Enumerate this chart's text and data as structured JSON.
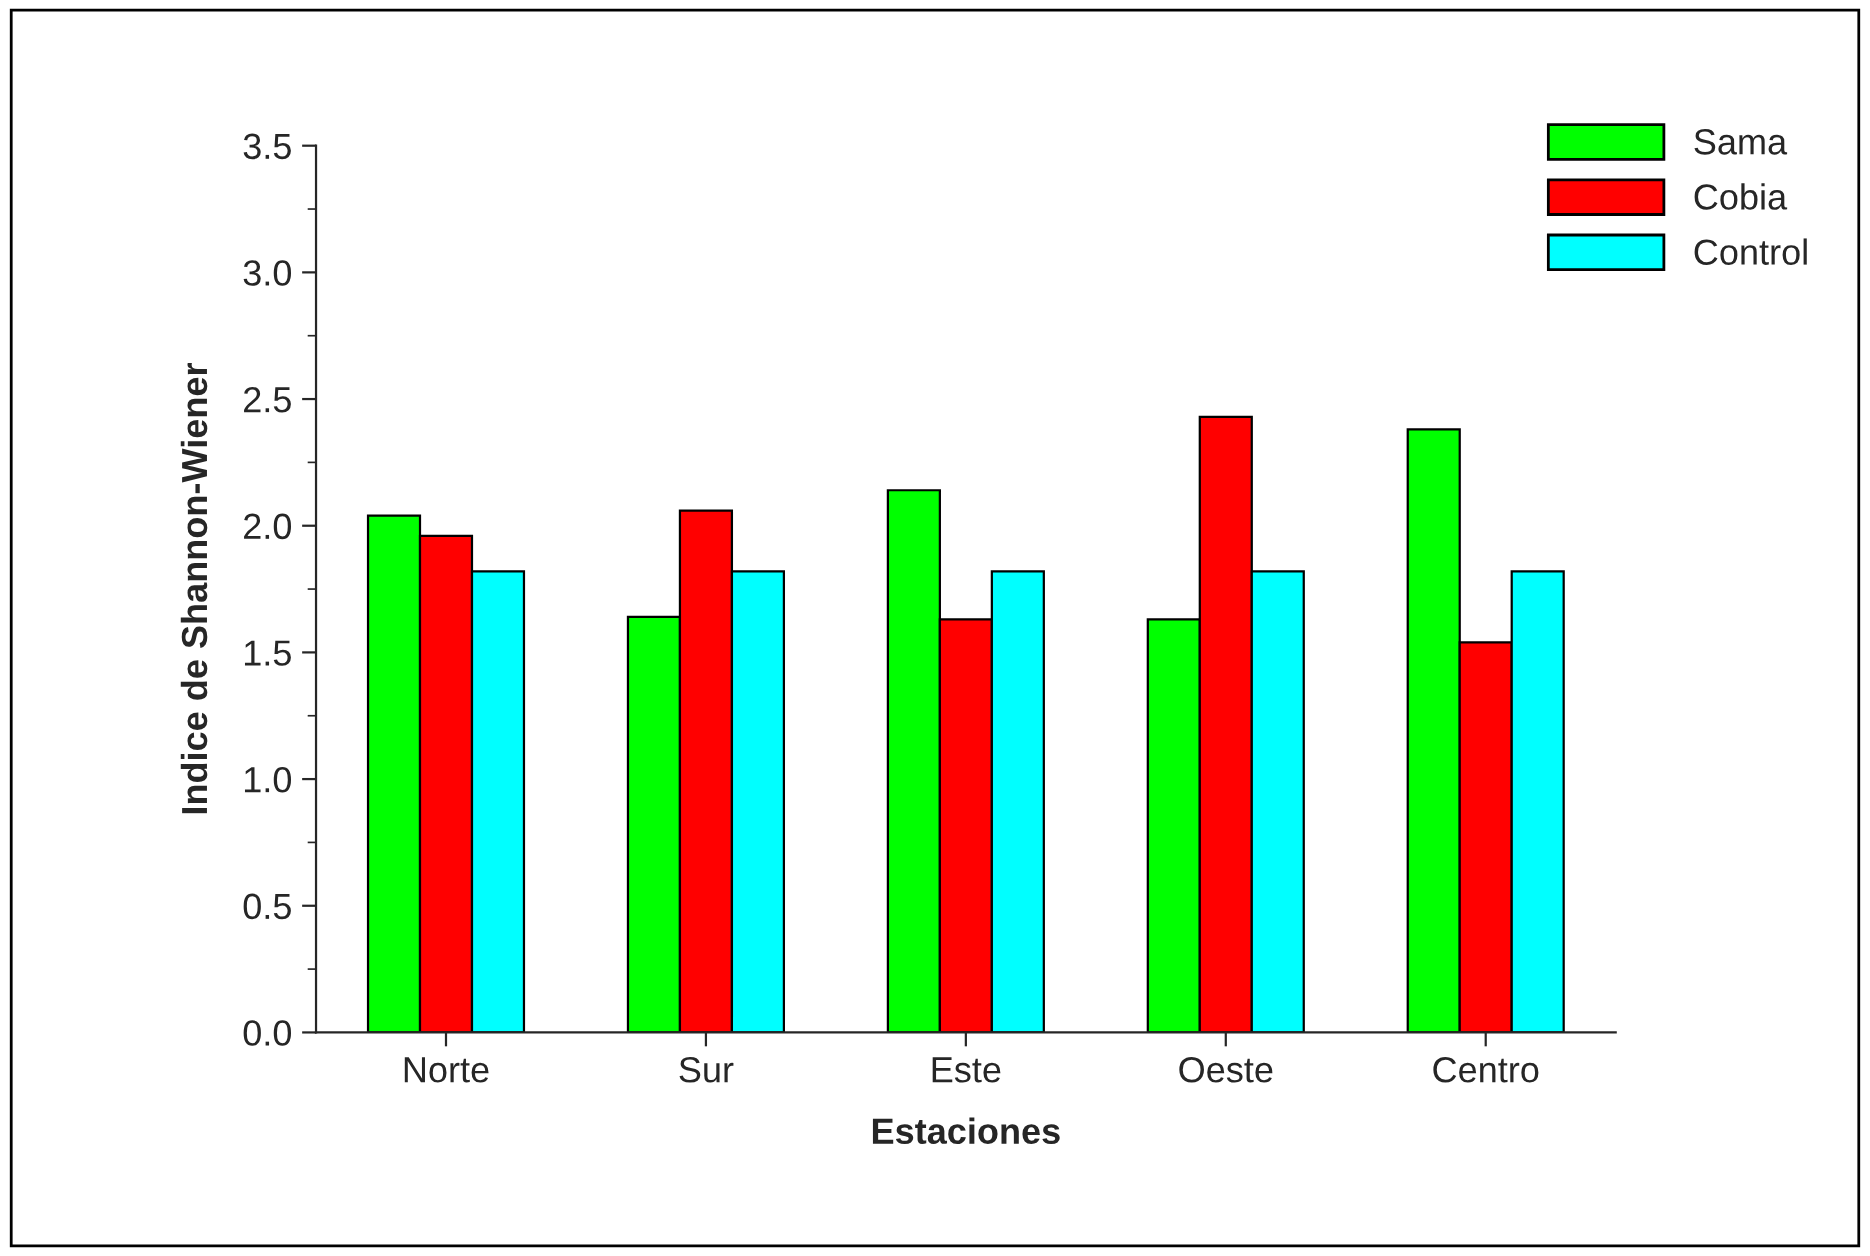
{
  "chart_data": {
    "type": "bar",
    "xlabel": "Estaciones",
    "ylabel": "Indice de Shannon-Wiener",
    "categories": [
      "Norte",
      "Sur",
      "Este",
      "Oeste",
      "Centro"
    ],
    "series": [
      {
        "name": "Sama",
        "color": "#00ff00",
        "values": [
          2.04,
          1.64,
          2.14,
          1.63,
          2.38
        ]
      },
      {
        "name": "Cobia",
        "color": "#ff0000",
        "values": [
          1.96,
          2.06,
          1.63,
          2.43,
          1.54
        ]
      },
      {
        "name": "Control",
        "color": "#00ffff",
        "values": [
          1.82,
          1.82,
          1.82,
          1.82,
          1.82
        ]
      }
    ],
    "ylim": [
      0,
      3.5
    ],
    "yticks": [
      {
        "value": 0,
        "label": "0.0"
      },
      {
        "value": 0.5,
        "label": "0.5"
      },
      {
        "value": 1,
        "label": "1.0"
      },
      {
        "value": 1.5,
        "label": "1.5"
      },
      {
        "value": 2,
        "label": "2.0"
      },
      {
        "value": 2.5,
        "label": "2.5"
      },
      {
        "value": 3,
        "label": "3.0"
      },
      {
        "value": 3.5,
        "label": "3.5"
      }
    ],
    "grid": false,
    "legend": "top right"
  }
}
